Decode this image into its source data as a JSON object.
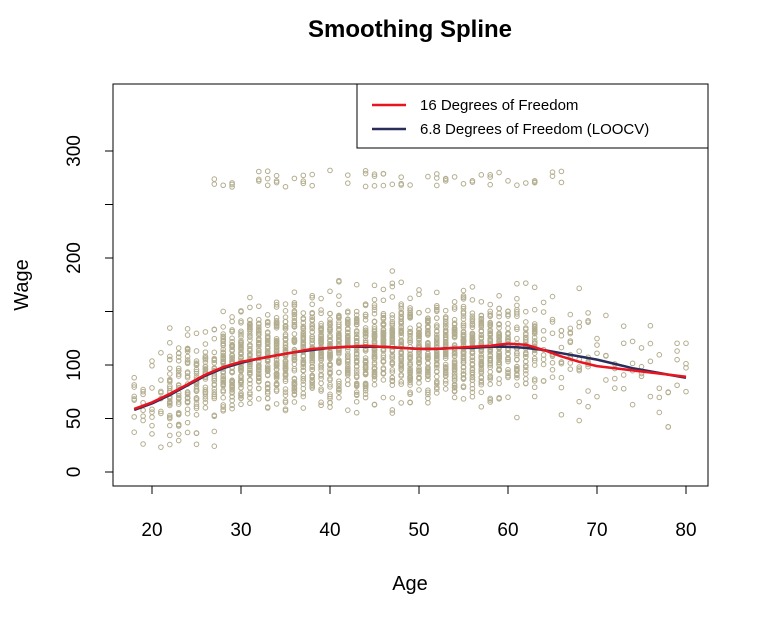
{
  "chart_data": {
    "type": "scatter",
    "title": "Smoothing Spline",
    "xlabel": "Age",
    "ylabel": "Wage",
    "xlim": [
      18,
      80
    ],
    "ylim": [
      0,
      340
    ],
    "xticks": [
      20,
      30,
      40,
      50,
      60,
      70,
      80
    ],
    "yticks": [
      0,
      50,
      100,
      200,
      300
    ],
    "grid": false,
    "legend_position": "top-right",
    "point_color": "#b3ad8f",
    "series": [
      {
        "name": "16 Degrees of Freedom",
        "type": "line",
        "color": "#e8141f",
        "x": [
          18,
          20,
          22,
          24,
          26,
          28,
          30,
          32,
          34,
          36,
          38,
          40,
          42,
          44,
          46,
          48,
          50,
          52,
          54,
          56,
          58,
          60,
          62,
          64,
          66,
          68,
          70,
          72,
          74,
          76,
          78,
          80
        ],
        "y": [
          59,
          65,
          73,
          82,
          91,
          98,
          103,
          106,
          109,
          112,
          115,
          116,
          117,
          118,
          117,
          116,
          115,
          115,
          116,
          117,
          118,
          120,
          119,
          114,
          108,
          103,
          99,
          97,
          95,
          93,
          91,
          89
        ]
      },
      {
        "name": "6.8 Degrees of Freedom (LOOCV)",
        "type": "line",
        "color": "#2a2d5c",
        "x": [
          18,
          20,
          22,
          24,
          26,
          28,
          30,
          32,
          34,
          36,
          38,
          40,
          42,
          44,
          46,
          48,
          50,
          52,
          54,
          56,
          58,
          60,
          62,
          64,
          66,
          68,
          70,
          72,
          74,
          76,
          78,
          80
        ],
        "y": [
          58,
          64,
          72,
          81,
          90,
          97,
          102,
          106,
          109,
          112,
          114,
          116,
          117,
          117,
          117,
          116,
          115,
          115,
          116,
          116,
          117,
          117,
          116,
          114,
          111,
          108,
          105,
          101,
          97,
          94,
          91,
          88
        ]
      }
    ]
  }
}
